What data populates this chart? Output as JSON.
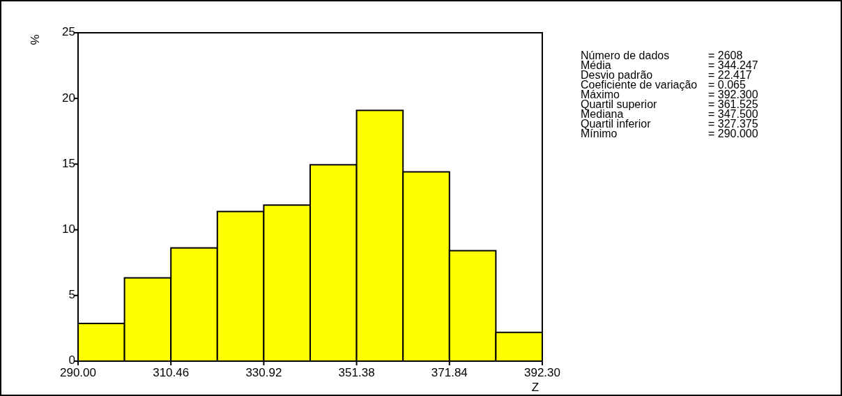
{
  "chart_data": {
    "type": "histogram",
    "xlabel": "Z",
    "ylabel": "%",
    "bins": [
      290,
      300.23,
      310.46,
      320.69,
      330.92,
      341.15,
      351.38,
      361.61,
      371.84,
      382.07,
      392.3
    ],
    "values": [
      2.87,
      6.34,
      8.62,
      11.39,
      11.88,
      14.95,
      19.09,
      14.41,
      8.41,
      2.19
    ],
    "color": "#ffff00",
    "xlim": [
      290,
      392.3
    ],
    "xticks": [
      {
        "value": 290,
        "label": "290.00"
      },
      {
        "value": 310.46,
        "label": "310.46"
      },
      {
        "value": 330.92,
        "label": "330.92"
      },
      {
        "value": 351.38,
        "label": "351.38"
      },
      {
        "value": 371.84,
        "label": "371.84"
      },
      {
        "value": 392.3,
        "label": "392.30"
      }
    ],
    "ylim": [
      0,
      25
    ],
    "yticks": [
      0,
      5,
      10,
      15,
      20,
      25
    ],
    "grid": false,
    "annotations": [
      "Número de dados = 2608",
      "Média = 344.247",
      "Desvio padrão = 22.417",
      "Coeficiente de variação = 0.065",
      "Máximo = 392.300",
      "Quartil superior = 361.525",
      "Mediana = 347.500",
      "Quartil inferior = 327.375",
      "Mínimo = 290.000"
    ]
  }
}
